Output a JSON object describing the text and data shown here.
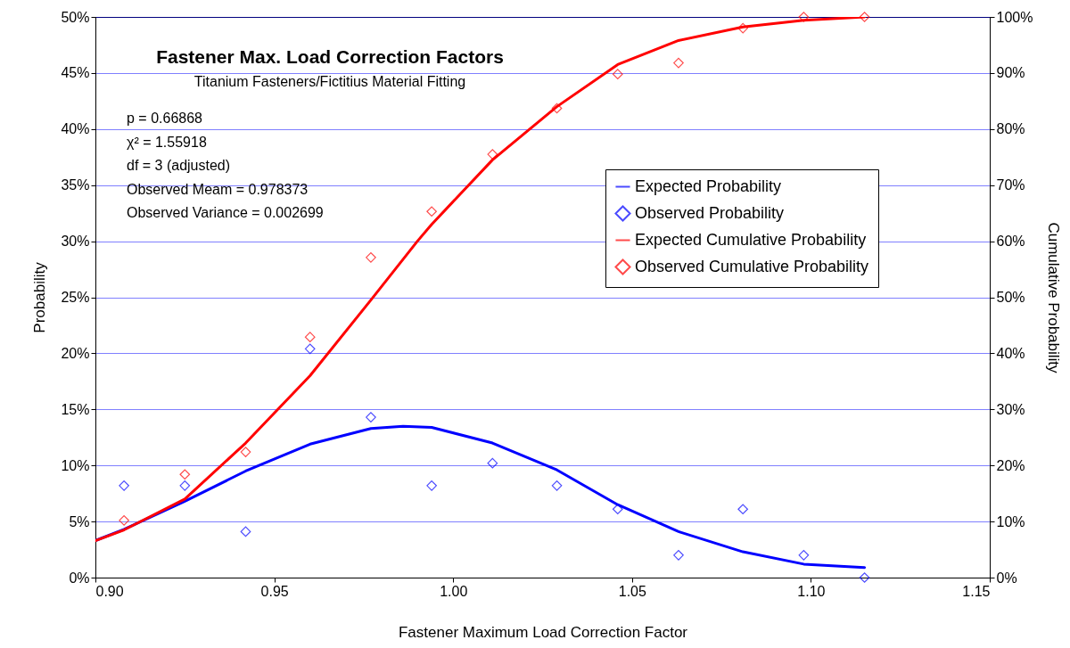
{
  "chart_data": {
    "type": "line",
    "title": "Fastener Max. Load Correction Factors",
    "subtitle": "Titanium Fasteners/Fictitius Material Fitting",
    "xlabel": "Fastener Maximum Load Correction Factor",
    "ylabel": "Probability",
    "y2label": "Cumulative Probability",
    "annotations": [
      "p = 0.66868",
      "χ² = 1.55918",
      "df = 3 (adjusted)",
      "Observed Meam     = 0.978373",
      "Observed Variance = 0.002699"
    ],
    "xlim": [
      0.9,
      1.15
    ],
    "xticks": [
      {
        "value": 0.9,
        "label": "0.90"
      },
      {
        "value": 0.95,
        "label": "0.95"
      },
      {
        "value": 1.0,
        "label": "1.00"
      },
      {
        "value": 1.05,
        "label": "1.05"
      },
      {
        "value": 1.1,
        "label": "1.10"
      },
      {
        "value": 1.15,
        "label": "1.15"
      }
    ],
    "ylim": [
      0,
      50
    ],
    "yticks": [
      {
        "value": 0,
        "label": "0%"
      },
      {
        "value": 5,
        "label": "5%"
      },
      {
        "value": 10,
        "label": "10%"
      },
      {
        "value": 15,
        "label": "15%"
      },
      {
        "value": 20,
        "label": "20%"
      },
      {
        "value": 25,
        "label": "25%"
      },
      {
        "value": 30,
        "label": "30%"
      },
      {
        "value": 35,
        "label": "35%"
      },
      {
        "value": 40,
        "label": "40%"
      },
      {
        "value": 45,
        "label": "45%"
      },
      {
        "value": 50,
        "label": "50%"
      }
    ],
    "y2lim": [
      0,
      100
    ],
    "y2ticks": [
      {
        "value": 0,
        "label": "0%"
      },
      {
        "value": 10,
        "label": "10%"
      },
      {
        "value": 20,
        "label": "20%"
      },
      {
        "value": 30,
        "label": "30%"
      },
      {
        "value": 40,
        "label": "40%"
      },
      {
        "value": 50,
        "label": "50%"
      },
      {
        "value": 60,
        "label": "60%"
      },
      {
        "value": 70,
        "label": "70%"
      },
      {
        "value": 80,
        "label": "80%"
      },
      {
        "value": 90,
        "label": "90%"
      },
      {
        "value": 100,
        "label": "100%"
      }
    ],
    "grid": "y",
    "legend": "right",
    "series": [
      {
        "name": "Expected Probability",
        "color": "#0000ff",
        "marker": "none",
        "x": [
          0.9,
          0.908,
          0.925,
          0.942,
          0.96,
          0.977,
          0.986,
          0.994,
          1.011,
          1.029,
          1.046,
          1.063,
          1.081,
          1.098,
          1.115
        ],
        "values": [
          3.3,
          4.3,
          6.8,
          9.5,
          11.9,
          13.3,
          13.5,
          13.4,
          12.0,
          9.6,
          6.5,
          4.1,
          2.3,
          1.2,
          0.9
        ]
      },
      {
        "name": "Observed Probability",
        "type": "scatter",
        "color": "#0000ff",
        "marker": "diamond",
        "x": [
          0.908,
          0.925,
          0.942,
          0.96,
          0.977,
          0.994,
          1.011,
          1.029,
          1.046,
          1.063,
          1.081,
          1.098,
          1.115
        ],
        "values": [
          8.2,
          8.2,
          4.1,
          20.4,
          14.3,
          8.2,
          10.2,
          8.2,
          6.1,
          2.0,
          6.1,
          2.0,
          0
        ]
      },
      {
        "name": "Expected Cumulative Probability",
        "axis": "y2",
        "color": "#ff0000",
        "marker": "none",
        "x": [
          0.9,
          0.908,
          0.925,
          0.942,
          0.96,
          0.977,
          0.99,
          0.994,
          1.011,
          1.029,
          1.046,
          1.063,
          1.081,
          1.098,
          1.115
        ],
        "values": [
          6.6,
          8.5,
          14,
          24,
          36,
          49.5,
          60,
          63,
          74.5,
          84,
          91.5,
          95.8,
          98.2,
          99.4,
          100
        ]
      },
      {
        "name": "Observed Cumulative Probability",
        "type": "scatter",
        "axis": "y2",
        "color": "#ff0000",
        "marker": "diamond",
        "x": [
          0.908,
          0.925,
          0.942,
          0.96,
          0.977,
          0.994,
          1.011,
          1.029,
          1.046,
          1.063,
          1.081,
          1.098,
          1.115
        ],
        "values": [
          10.2,
          18.4,
          22.4,
          42.9,
          57.1,
          65.3,
          75.5,
          83.7,
          89.8,
          91.8,
          98.0,
          100,
          100
        ]
      }
    ]
  }
}
